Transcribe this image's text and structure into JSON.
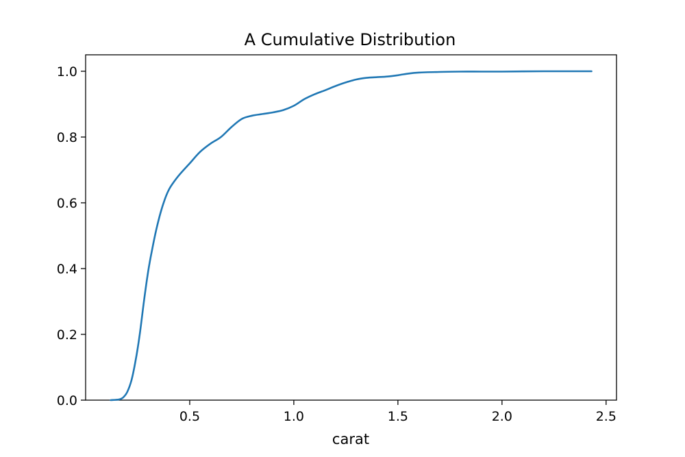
{
  "chart_data": {
    "type": "line",
    "title": "A Cumulative Distribution",
    "xlabel": "carat",
    "ylabel": "",
    "xlim": [
      0.0,
      2.55
    ],
    "ylim": [
      0.0,
      1.05
    ],
    "xticks": [
      0.5,
      1.0,
      1.5,
      2.0,
      2.5
    ],
    "xtick_labels": [
      "0.5",
      "1.0",
      "1.5",
      "2.0",
      "2.5"
    ],
    "yticks": [
      0.0,
      0.2,
      0.4,
      0.6,
      0.8,
      1.0
    ],
    "ytick_labels": [
      "0.0",
      "0.2",
      "0.4",
      "0.6",
      "0.8",
      "1.0"
    ],
    "grid": false,
    "legend": "none",
    "series": [
      {
        "color": "#1f77b4",
        "x": [
          0.12,
          0.16,
          0.18,
          0.2,
          0.22,
          0.24,
          0.26,
          0.28,
          0.3,
          0.32,
          0.34,
          0.36,
          0.38,
          0.4,
          0.42,
          0.45,
          0.5,
          0.55,
          0.6,
          0.65,
          0.7,
          0.75,
          0.8,
          0.85,
          0.9,
          0.95,
          1.0,
          1.05,
          1.1,
          1.15,
          1.2,
          1.25,
          1.3,
          1.35,
          1.4,
          1.45,
          1.5,
          1.55,
          1.6,
          1.7,
          1.8,
          1.9,
          2.0,
          2.1,
          2.2,
          2.3,
          2.43
        ],
        "y": [
          0.0,
          0.002,
          0.008,
          0.025,
          0.06,
          0.12,
          0.2,
          0.3,
          0.39,
          0.46,
          0.52,
          0.57,
          0.61,
          0.64,
          0.66,
          0.685,
          0.72,
          0.755,
          0.78,
          0.8,
          0.83,
          0.855,
          0.865,
          0.87,
          0.875,
          0.882,
          0.895,
          0.915,
          0.93,
          0.942,
          0.955,
          0.966,
          0.975,
          0.98,
          0.982,
          0.984,
          0.988,
          0.993,
          0.996,
          0.998,
          0.999,
          0.999,
          0.999,
          0.9995,
          1.0,
          1.0,
          1.0
        ]
      }
    ]
  }
}
